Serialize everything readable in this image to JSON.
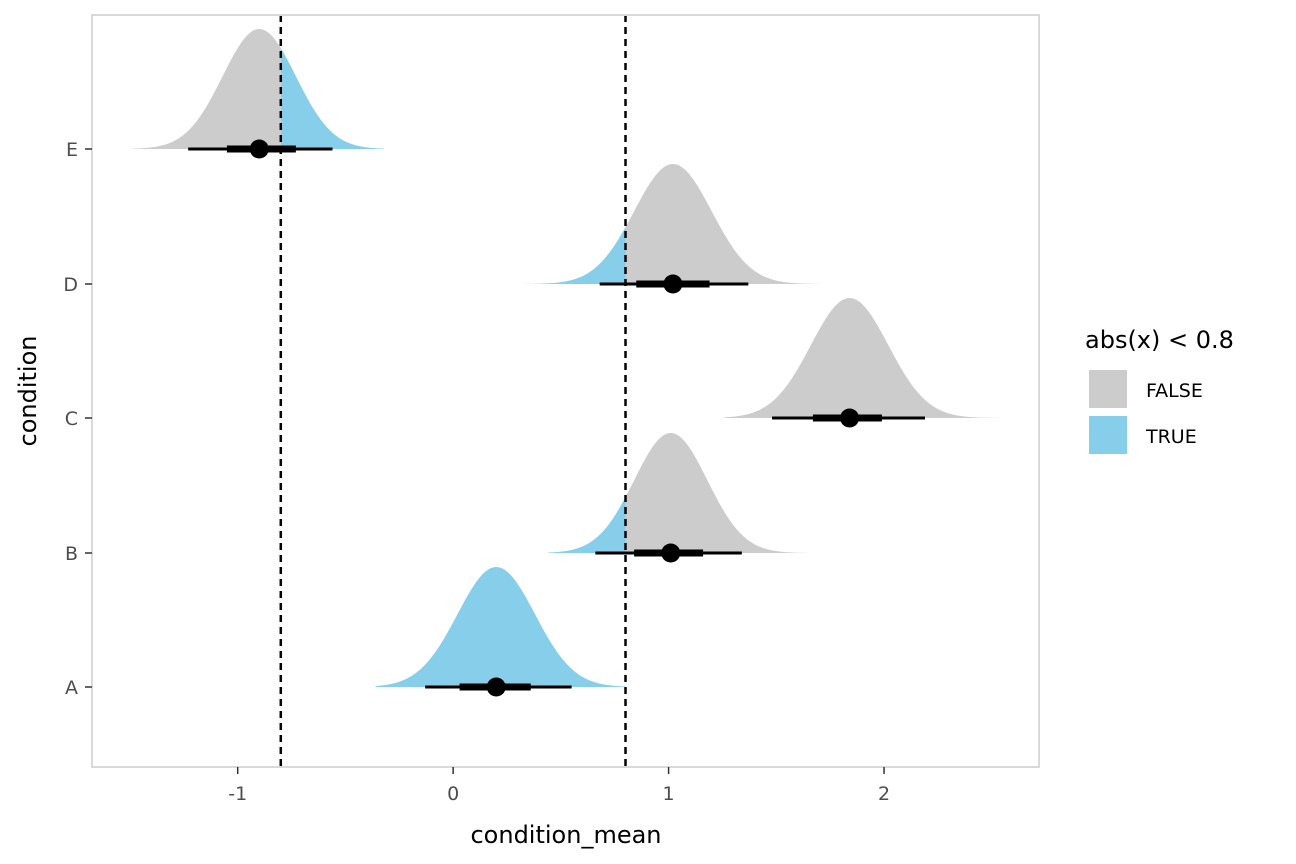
{
  "chart_data": {
    "type": "halfeye",
    "xlabel": "condition_mean",
    "ylabel": "condition",
    "xlim": [
      -1.7,
      2.7
    ],
    "x_ticks": [
      -1,
      0,
      1,
      2
    ],
    "x_tick_labels": [
      "-1",
      "0",
      "1",
      "2"
    ],
    "categories": [
      "A",
      "B",
      "C",
      "D",
      "E"
    ],
    "reference_lines": [
      -0.8,
      0.8
    ],
    "legend": {
      "title": "abs(x) < 0.8",
      "position": "right",
      "entries": [
        {
          "label": "FALSE",
          "color": "#cccccc"
        },
        {
          "label": "TRUE",
          "color": "#87ceeb"
        }
      ]
    },
    "series": [
      {
        "condition": "A",
        "mean": 0.2,
        "sd": 0.18,
        "min": -0.36,
        "max": 0.8,
        "interval_66": [
          0.03,
          0.36
        ],
        "interval_95": [
          -0.13,
          0.55
        ]
      },
      {
        "condition": "B",
        "mean": 1.01,
        "sd": 0.17,
        "min": 0.44,
        "max": 1.65,
        "interval_66": [
          0.84,
          1.16
        ],
        "interval_95": [
          0.66,
          1.34
        ]
      },
      {
        "condition": "C",
        "mean": 1.84,
        "sd": 0.18,
        "min": 1.26,
        "max": 2.53,
        "interval_66": [
          1.67,
          1.99
        ],
        "interval_95": [
          1.48,
          2.19
        ]
      },
      {
        "condition": "D",
        "mean": 1.02,
        "sd": 0.18,
        "min": 0.31,
        "max": 1.71,
        "interval_66": [
          0.85,
          1.19
        ],
        "interval_95": [
          0.68,
          1.37
        ]
      },
      {
        "condition": "E",
        "mean": -0.9,
        "sd": 0.17,
        "min": -1.49,
        "max": -0.32,
        "interval_66": [
          -1.05,
          -0.73
        ],
        "interval_95": [
          -1.23,
          -0.56
        ]
      }
    ],
    "colors": {
      "false_fill": "#cccccc",
      "true_fill": "#87ceeb",
      "interval": "#000000",
      "reference_line": "#000000",
      "panel_border": "#d9d9d9"
    },
    "grid": false
  }
}
